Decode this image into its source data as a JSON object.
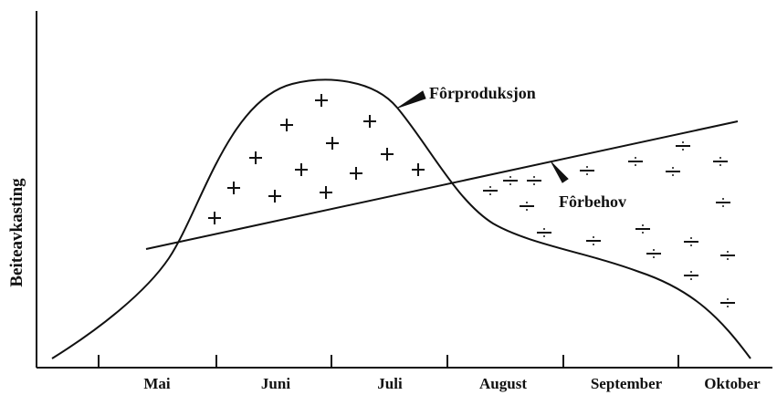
{
  "y_axis_label": "Beiteavkasting",
  "months": [
    "Mai",
    "Juni",
    "Juli",
    "August",
    "September",
    "Oktober"
  ],
  "curves": {
    "production": "Fôrproduksjon",
    "demand": "Fôrbehov"
  }
}
